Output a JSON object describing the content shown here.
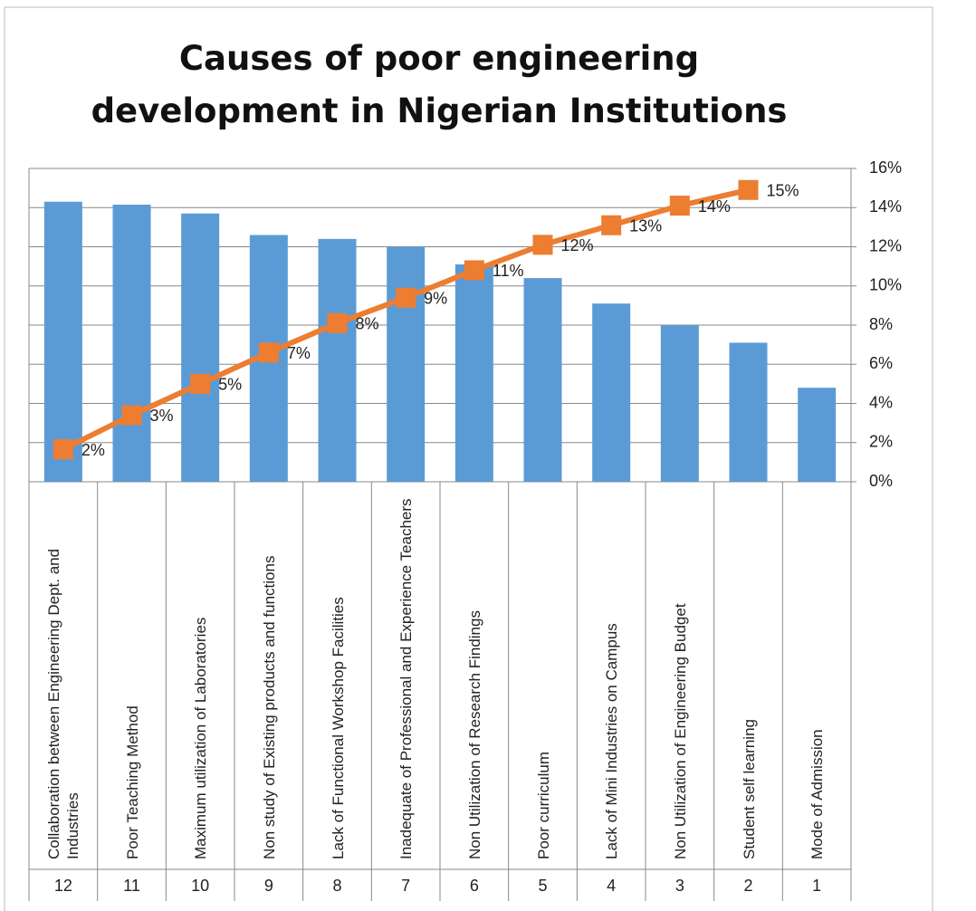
{
  "chart_data": {
    "type": "bar",
    "title": "Causes of poor engineering development in Nigerian Institutions",
    "categories": [
      "Collaboration between Engineering Dept. and Industries",
      "Poor Teaching Method",
      "Maximum utilization of Laboratories",
      "Non study of Existing products and functions",
      "Lack of Functional Workshop Facilities",
      "Inadequate of Professional and Experience Teachers",
      "Non Utilization of Research Findings",
      "Poor curriculum",
      "Lack of Mini Industries on Campus",
      "Non Utilization of Engineering Budget",
      "Student self learning",
      "Mode of Admission"
    ],
    "category_numbers": [
      "12",
      "11",
      "10",
      "9",
      "8",
      "7",
      "6",
      "5",
      "4",
      "3",
      "2",
      "1"
    ],
    "series": [
      {
        "type": "bar",
        "color": "#5b9bd5",
        "values": [
          14.3,
          14.15,
          13.7,
          12.6,
          12.4,
          12.0,
          11.1,
          10.4,
          9.1,
          8.0,
          7.1,
          4.8
        ]
      },
      {
        "type": "line",
        "color": "#ed7d31",
        "axis": "y2",
        "values": [
          1.66,
          3.4,
          5.0,
          6.6,
          8.1,
          9.4,
          10.8,
          12.1,
          13.1,
          14.1,
          14.9,
          null
        ],
        "value_labels": [
          "2%",
          "3%",
          "5%",
          "7%",
          "8%",
          "9%",
          "11%",
          "12%",
          "13%",
          "14%",
          "15%",
          null
        ]
      }
    ],
    "y2lim": [
      0,
      16
    ],
    "y2ticks": [
      {
        "value": 0,
        "label": "0%"
      },
      {
        "value": 2,
        "label": "2%"
      },
      {
        "value": 4,
        "label": "4%"
      },
      {
        "value": 6,
        "label": "6%"
      },
      {
        "value": 8,
        "label": "8%"
      },
      {
        "value": 10,
        "label": "10%"
      },
      {
        "value": 12,
        "label": "12%"
      },
      {
        "value": 14,
        "label": "14%"
      },
      {
        "value": 16,
        "label": "16%"
      }
    ],
    "grid": true
  }
}
